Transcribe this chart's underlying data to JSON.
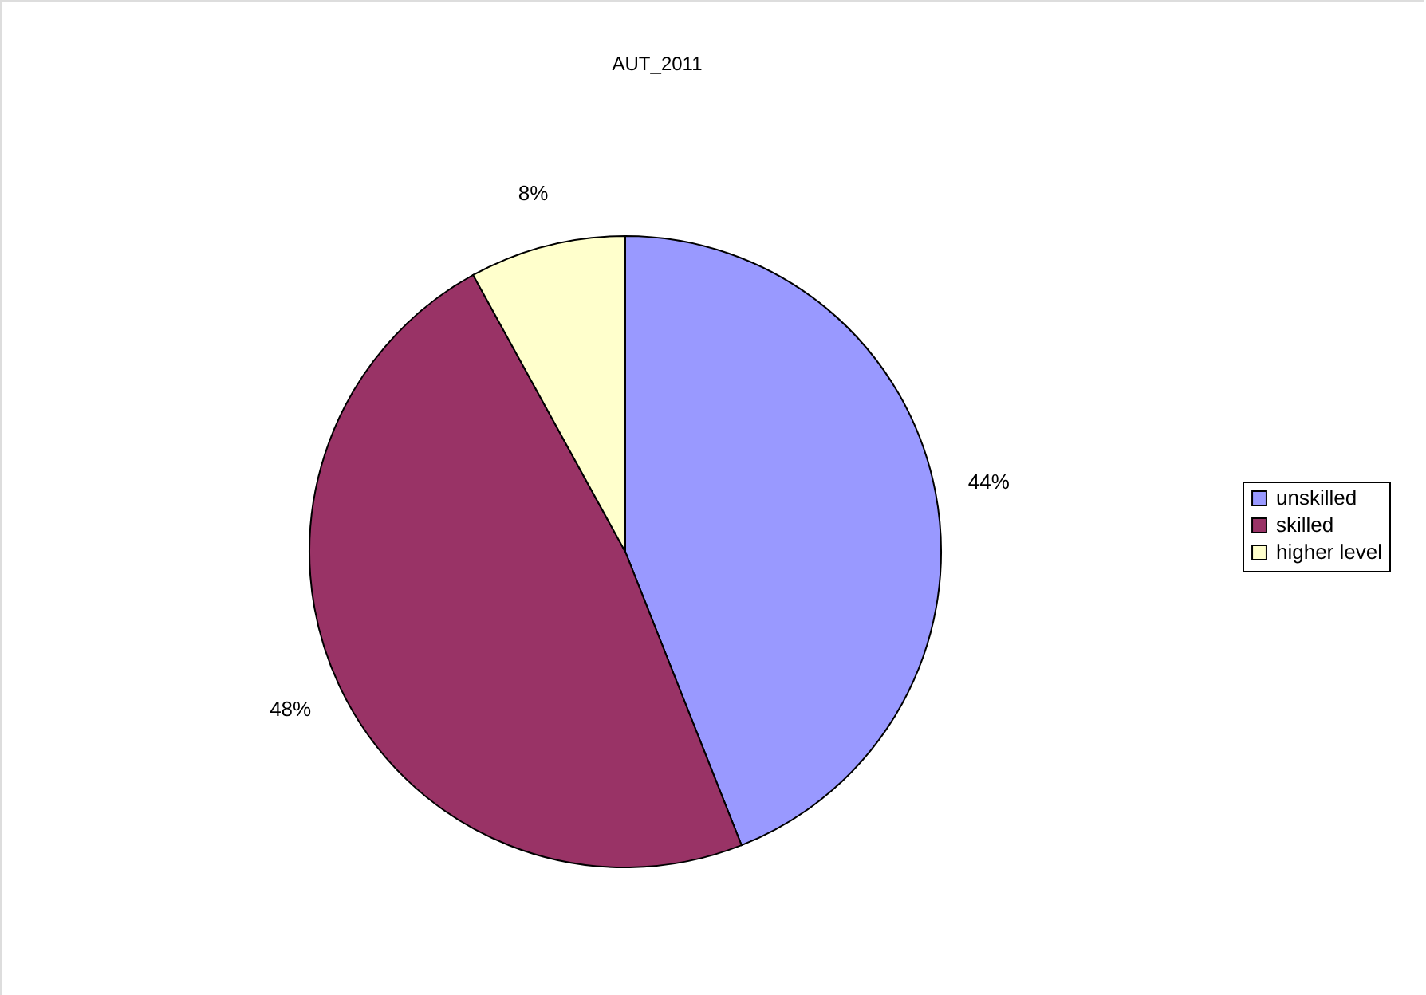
{
  "chart_data": {
    "type": "pie",
    "title": "AUT_2011",
    "categories": [
      "unskilled",
      "skilled",
      "higher level"
    ],
    "values": [
      44,
      48,
      8
    ],
    "colors": [
      "#9999ff",
      "#993366",
      "#ffffcc"
    ],
    "value_labels": [
      "44%",
      "48%",
      "8%"
    ],
    "legend": "right"
  }
}
